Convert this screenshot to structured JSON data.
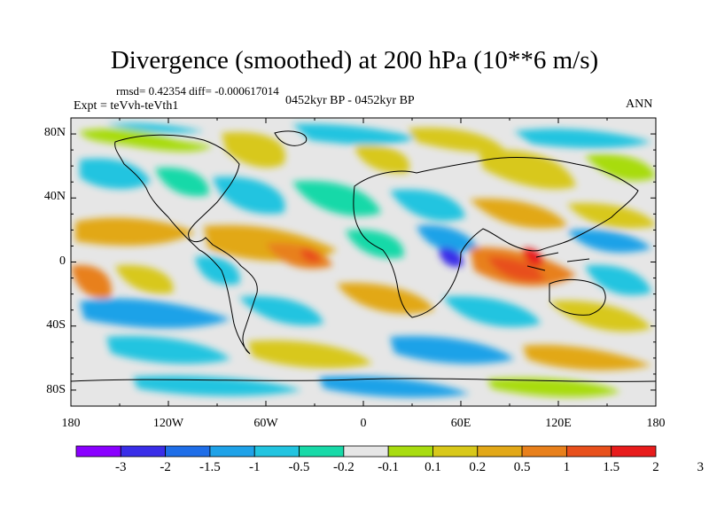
{
  "title": "Divergence (smoothed) at 200 hPa (10**6 m/s)",
  "stats_line": "rmsd= 0.42354 diff= -0.000617014",
  "period": "0452kyr BP - 0452kyr BP",
  "experiment": "Expt = teVvh-teVth1",
  "season": "ANN",
  "map_data": {
    "projection": "cylindrical equidistant",
    "lat_ticks": [
      "80N",
      "40N",
      "0",
      "40S",
      "80S"
    ],
    "lon_ticks": [
      "180",
      "120W",
      "60W",
      "0",
      "60E",
      "120E",
      "180"
    ],
    "fill_colors": [
      "#8a00ff",
      "#3a2ee8",
      "#1f6ee8",
      "#1fa2e8",
      "#22c4e0",
      "#18d9a8",
      "#e6e6e6",
      "#a8dc10",
      "#d8c81a",
      "#e2a818",
      "#e8801c",
      "#e8501c",
      "#e81c1c"
    ]
  },
  "colorbar": {
    "levels": [
      "-3",
      "-2",
      "-1.5",
      "-1",
      "-0.5",
      "-0.2",
      "-0.1",
      "0.1",
      "0.2",
      "0.5",
      "1",
      "1.5",
      "2",
      "3"
    ],
    "colors": [
      "#8a00ff",
      "#3a2ee8",
      "#1f6ee8",
      "#1fa2e8",
      "#22c4e0",
      "#18d9a8",
      "#e6e6e6",
      "#a8dc10",
      "#d8c81a",
      "#e2a818",
      "#e8801c",
      "#e8501c",
      "#e81c1c"
    ]
  }
}
